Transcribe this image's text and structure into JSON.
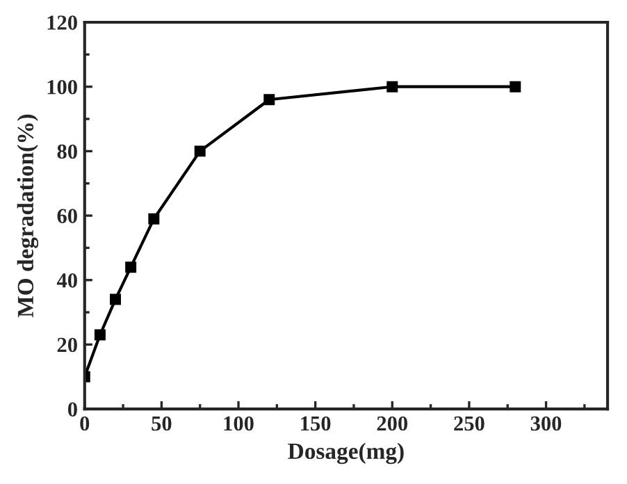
{
  "chart_data": {
    "type": "line",
    "xlabel": "Dosage(mg)",
    "ylabel": "MO degradation(%)",
    "x": [
      0,
      10,
      20,
      30,
      45,
      75,
      120,
      200,
      280
    ],
    "series": [
      {
        "color": "#000000",
        "values": [
          10,
          23,
          34,
          44,
          59,
          80,
          96,
          100,
          100
        ]
      }
    ],
    "xlim": [
      0,
      340
    ],
    "xticks": [
      0,
      50,
      100,
      150,
      200,
      250,
      300
    ],
    "ylim": [
      0,
      120
    ],
    "yticks": [
      0,
      20,
      40,
      60,
      80,
      100,
      120
    ],
    "marker": "square",
    "line_style": "solid",
    "grid": false,
    "legend": false
  }
}
